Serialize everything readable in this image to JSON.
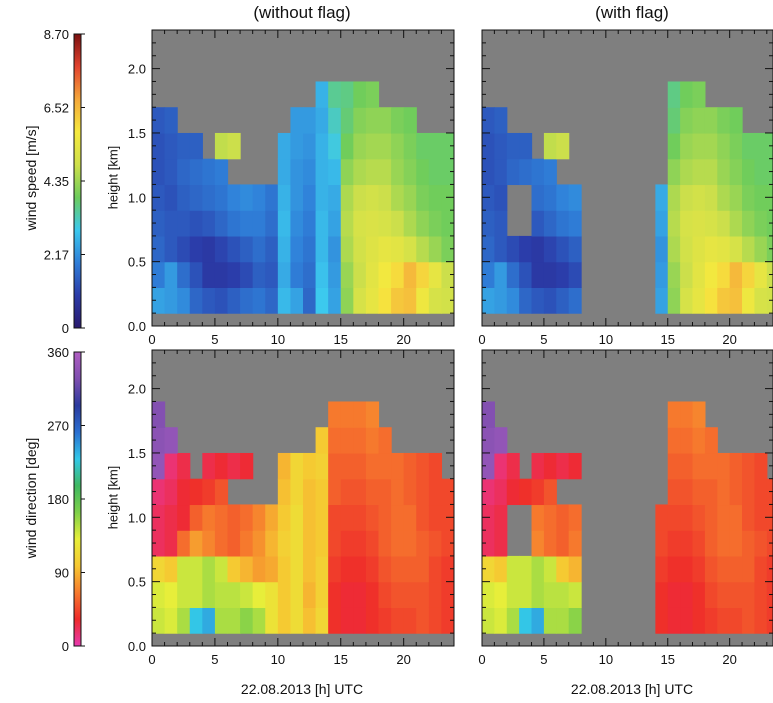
{
  "figure": {
    "column_titles": [
      "(without flag)",
      "(with flag)"
    ],
    "x_label": "22.08.2013  [h] UTC",
    "y_label": "height [km]",
    "background_fill": "#7f7f7f"
  },
  "colorbars": [
    {
      "label": "wind speed [m/s]",
      "ticks": [
        "0",
        "2.17",
        "4.35",
        "6.52",
        "8.70"
      ],
      "range": [
        0,
        8.7
      ],
      "stops": [
        "#2a1a6e",
        "#2b3ba8",
        "#2f7ed8",
        "#3cc9ee",
        "#6dcc5c",
        "#cfe04a",
        "#f6e93e",
        "#f4a73a",
        "#e2432f",
        "#7a1010"
      ]
    },
    {
      "label": "wind direction [deg]",
      "ticks": [
        "0",
        "90",
        "180",
        "270",
        "360"
      ],
      "range": [
        0,
        360
      ],
      "stops": [
        "#e83ab0",
        "#ee2a2a",
        "#f67a2d",
        "#f6c832",
        "#e7ef3a",
        "#7ed04a",
        "#3fb861",
        "#33c8e8",
        "#2b6fd1",
        "#2b3a9e",
        "#7f4fb0",
        "#b05ec2"
      ]
    }
  ],
  "chart_data": [
    {
      "type": "heatmap",
      "title": "(without flag)",
      "variable": "wind speed",
      "unit": "m/s",
      "xlabel": "22.08.2013  [h] UTC",
      "ylabel": "height [km]",
      "xlim": [
        0,
        24
      ],
      "ylim": [
        0,
        2.3
      ],
      "xticks": [
        0,
        5,
        10,
        15,
        20
      ],
      "yticks": [
        0.0,
        0.5,
        1.0,
        1.5,
        2.0
      ],
      "x_hours": [
        0,
        1,
        2,
        3,
        4,
        5,
        6,
        7,
        8,
        9,
        10,
        11,
        12,
        13,
        14,
        15,
        16,
        17,
        18,
        19,
        20,
        21,
        22,
        23
      ],
      "y_km": [
        0.2,
        0.4,
        0.6,
        0.8,
        1.0,
        1.2,
        1.4,
        1.6,
        1.8
      ],
      "values": [
        [
          2.4,
          2.3,
          2.1,
          1.6,
          1.4,
          1.3,
          1.5,
          1.7,
          1.8,
          1.6,
          2.7,
          2.4,
          1.6,
          2.9,
          2.4,
          4.2,
          5.0,
          5.4,
          5.9,
          6.3,
          6.4,
          5.6,
          5.0,
          4.9
        ],
        [
          1.9,
          2.3,
          1.7,
          1.3,
          0.9,
          0.9,
          1.0,
          1.2,
          1.5,
          1.4,
          2.5,
          1.9,
          1.7,
          2.8,
          2.3,
          4.3,
          4.8,
          5.3,
          5.7,
          6.0,
          6.5,
          6.1,
          5.4,
          4.8
        ],
        [
          1.6,
          1.4,
          1.2,
          1.0,
          0.9,
          1.1,
          1.3,
          1.5,
          1.7,
          1.5,
          2.6,
          2.0,
          1.8,
          2.7,
          2.2,
          4.5,
          4.9,
          5.2,
          5.4,
          5.3,
          5.0,
          4.6,
          4.3,
          4.0
        ],
        [
          1.5,
          1.4,
          1.4,
          1.3,
          1.4,
          1.6,
          1.8,
          1.9,
          1.9,
          1.7,
          2.7,
          2.1,
          1.9,
          2.7,
          2.4,
          4.6,
          5.0,
          5.1,
          5.0,
          4.8,
          4.5,
          4.2,
          4.0,
          3.9
        ],
        [
          1.4,
          1.3,
          1.5,
          1.6,
          1.7,
          1.8,
          2.0,
          2.1,
          2.0,
          1.8,
          2.6,
          2.2,
          2.0,
          2.6,
          2.5,
          4.5,
          4.8,
          4.9,
          4.8,
          4.5,
          4.3,
          4.0,
          3.9,
          3.9
        ],
        [
          1.3,
          1.4,
          1.6,
          1.7,
          1.8,
          1.9,
          null,
          null,
          null,
          null,
          2.5,
          2.2,
          2.1,
          2.6,
          2.7,
          4.2,
          4.5,
          4.6,
          4.6,
          4.3,
          4.1,
          3.9,
          3.8,
          3.8
        ],
        [
          1.3,
          1.4,
          1.5,
          1.5,
          null,
          4.7,
          4.8,
          null,
          null,
          null,
          2.5,
          2.3,
          2.2,
          2.6,
          3.0,
          3.9,
          4.3,
          4.4,
          4.4,
          4.2,
          4.0,
          3.8,
          3.8,
          3.8
        ],
        [
          1.4,
          1.5,
          null,
          null,
          null,
          null,
          null,
          null,
          null,
          null,
          null,
          2.3,
          2.3,
          2.5,
          3.2,
          3.7,
          4.1,
          4.2,
          4.2,
          4.0,
          3.9,
          null,
          null,
          null
        ],
        [
          null,
          null,
          null,
          null,
          null,
          null,
          null,
          null,
          null,
          null,
          null,
          null,
          null,
          2.6,
          3.5,
          3.6,
          3.9,
          4.0,
          null,
          null,
          null,
          null,
          null,
          null
        ]
      ]
    },
    {
      "type": "heatmap",
      "title": "(with flag)",
      "variable": "wind speed",
      "unit": "m/s",
      "xlabel": "22.08.2013  [h] UTC",
      "ylabel": "",
      "xlim": [
        0,
        23.5
      ],
      "ylim": [
        0,
        2.3
      ],
      "xticks": [
        0,
        5,
        10,
        15,
        20
      ],
      "yticks": [
        0.0,
        0.5,
        1.0,
        1.5,
        2.0
      ],
      "x_hours": [
        0,
        1,
        2,
        3,
        4,
        5,
        6,
        7,
        8,
        9,
        10,
        11,
        12,
        13,
        14,
        15,
        16,
        17,
        18,
        19,
        20,
        21,
        22,
        23
      ],
      "y_km": [
        0.2,
        0.4,
        0.6,
        0.8,
        1.0,
        1.2,
        1.4,
        1.6,
        1.8
      ],
      "values": [
        [
          2.4,
          2.3,
          2.1,
          1.6,
          1.4,
          1.3,
          1.5,
          1.7,
          null,
          null,
          null,
          null,
          null,
          null,
          2.4,
          4.2,
          5.0,
          5.4,
          5.9,
          6.3,
          6.4,
          5.6,
          5.0,
          4.9
        ],
        [
          1.9,
          2.3,
          1.7,
          1.3,
          0.9,
          0.9,
          1.0,
          1.2,
          null,
          null,
          null,
          null,
          null,
          null,
          2.3,
          4.3,
          4.8,
          5.3,
          5.7,
          6.0,
          6.5,
          6.1,
          5.4,
          4.8
        ],
        [
          1.6,
          1.4,
          1.2,
          1.0,
          0.9,
          1.1,
          1.3,
          1.5,
          null,
          null,
          null,
          null,
          null,
          null,
          2.2,
          4.5,
          4.9,
          5.2,
          5.4,
          5.3,
          5.0,
          4.6,
          4.3,
          4.0
        ],
        [
          1.5,
          1.4,
          null,
          null,
          1.4,
          1.6,
          1.8,
          1.9,
          null,
          null,
          null,
          null,
          null,
          null,
          2.4,
          4.6,
          5.0,
          5.1,
          5.0,
          4.8,
          4.5,
          4.2,
          4.0,
          3.9
        ],
        [
          1.4,
          1.3,
          null,
          null,
          1.7,
          1.8,
          2.0,
          2.1,
          null,
          null,
          null,
          null,
          null,
          null,
          2.5,
          4.5,
          4.8,
          4.9,
          4.8,
          4.5,
          4.3,
          4.0,
          3.9,
          3.9
        ],
        [
          1.3,
          1.4,
          1.6,
          1.7,
          1.8,
          1.9,
          null,
          null,
          null,
          null,
          null,
          null,
          null,
          null,
          null,
          4.2,
          4.5,
          4.6,
          4.6,
          4.3,
          4.1,
          3.9,
          3.8,
          3.8
        ],
        [
          1.3,
          1.4,
          1.5,
          1.5,
          null,
          4.7,
          4.8,
          null,
          null,
          null,
          null,
          null,
          null,
          null,
          null,
          3.9,
          4.3,
          4.4,
          4.4,
          4.2,
          4.0,
          3.8,
          3.8,
          3.8
        ],
        [
          1.4,
          1.5,
          null,
          null,
          null,
          null,
          null,
          null,
          null,
          null,
          null,
          null,
          null,
          null,
          null,
          3.7,
          4.1,
          4.2,
          4.2,
          4.0,
          3.9,
          null,
          null,
          null
        ],
        [
          null,
          null,
          null,
          null,
          null,
          null,
          null,
          null,
          null,
          null,
          null,
          null,
          null,
          null,
          null,
          3.6,
          3.9,
          4.0,
          null,
          null,
          null,
          null,
          null,
          null
        ]
      ]
    },
    {
      "type": "heatmap",
      "title": "",
      "variable": "wind direction",
      "unit": "deg",
      "xlabel": "22.08.2013  [h] UTC",
      "ylabel": "height [km]",
      "xlim": [
        0,
        24
      ],
      "ylim": [
        0,
        2.3
      ],
      "xticks": [
        0,
        5,
        10,
        15,
        20
      ],
      "yticks": [
        0.0,
        0.5,
        1.0,
        1.5,
        2.0
      ],
      "x_hours": [
        0,
        1,
        2,
        3,
        4,
        5,
        6,
        7,
        8,
        9,
        10,
        11,
        12,
        13,
        14,
        15,
        16,
        17,
        18,
        19,
        20,
        21,
        22,
        23
      ],
      "y_km": [
        0.2,
        0.4,
        0.6,
        0.8,
        1.0,
        1.2,
        1.4,
        1.6,
        1.8
      ],
      "values": [
        [
          140,
          135,
          150,
          230,
          240,
          150,
          150,
          160,
          150,
          120,
          100,
          115,
          95,
          110,
          35,
          30,
          30,
          35,
          40,
          45,
          45,
          50,
          45,
          40
        ],
        [
          135,
          130,
          140,
          140,
          150,
          145,
          145,
          140,
          130,
          120,
          100,
          115,
          90,
          105,
          35,
          30,
          30,
          35,
          45,
          50,
          50,
          50,
          45,
          40
        ],
        [
          110,
          100,
          140,
          140,
          150,
          140,
          100,
          90,
          80,
          85,
          100,
          115,
          95,
          105,
          40,
          35,
          35,
          40,
          50,
          55,
          55,
          55,
          45,
          40
        ],
        [
          20,
          25,
          60,
          80,
          70,
          60,
          55,
          65,
          75,
          90,
          105,
          115,
          95,
          100,
          45,
          40,
          40,
          45,
          55,
          60,
          60,
          55,
          50,
          45
        ],
        [
          20,
          25,
          30,
          55,
          65,
          60,
          55,
          60,
          70,
          85,
          100,
          115,
          95,
          100,
          45,
          45,
          45,
          50,
          55,
          60,
          60,
          50,
          45,
          45
        ],
        [
          15,
          20,
          30,
          35,
          40,
          50,
          null,
          null,
          null,
          null,
          95,
          110,
          95,
          100,
          55,
          50,
          50,
          55,
          55,
          60,
          55,
          50,
          45,
          45
        ],
        [
          340,
          15,
          25,
          null,
          25,
          30,
          25,
          30,
          null,
          null,
          90,
          110,
          100,
          105,
          55,
          55,
          55,
          60,
          60,
          60,
          55,
          50,
          45,
          null
        ],
        [
          335,
          340,
          null,
          null,
          null,
          null,
          null,
          null,
          null,
          null,
          null,
          null,
          null,
          100,
          60,
          60,
          60,
          65,
          60,
          null,
          null,
          null,
          null,
          null
        ],
        [
          330,
          null,
          null,
          null,
          null,
          null,
          null,
          null,
          null,
          null,
          null,
          null,
          null,
          null,
          65,
          65,
          65,
          70,
          null,
          null,
          null,
          null,
          null,
          null
        ]
      ]
    },
    {
      "type": "heatmap",
      "title": "",
      "variable": "wind direction",
      "unit": "deg",
      "xlabel": "22.08.2013  [h] UTC",
      "ylabel": "",
      "xlim": [
        0,
        23.5
      ],
      "ylim": [
        0,
        2.3
      ],
      "xticks": [
        0,
        5,
        10,
        15,
        20
      ],
      "yticks": [
        0.0,
        0.5,
        1.0,
        1.5,
        2.0
      ],
      "x_hours": [
        0,
        1,
        2,
        3,
        4,
        5,
        6,
        7,
        8,
        9,
        10,
        11,
        12,
        13,
        14,
        15,
        16,
        17,
        18,
        19,
        20,
        21,
        22,
        23
      ],
      "y_km": [
        0.2,
        0.4,
        0.6,
        0.8,
        1.0,
        1.2,
        1.4,
        1.6,
        1.8
      ],
      "values": [
        [
          140,
          135,
          150,
          230,
          240,
          150,
          150,
          160,
          null,
          null,
          null,
          null,
          null,
          null,
          35,
          30,
          30,
          35,
          40,
          45,
          45,
          50,
          45,
          40
        ],
        [
          135,
          130,
          140,
          140,
          150,
          145,
          145,
          140,
          null,
          null,
          null,
          null,
          null,
          null,
          35,
          30,
          30,
          35,
          45,
          50,
          50,
          50,
          45,
          40
        ],
        [
          110,
          100,
          140,
          140,
          150,
          140,
          100,
          90,
          null,
          null,
          null,
          null,
          null,
          null,
          40,
          35,
          35,
          40,
          50,
          55,
          55,
          55,
          45,
          40
        ],
        [
          20,
          25,
          null,
          null,
          70,
          60,
          55,
          65,
          null,
          null,
          null,
          null,
          null,
          null,
          45,
          40,
          40,
          45,
          55,
          60,
          60,
          55,
          50,
          45
        ],
        [
          20,
          25,
          null,
          null,
          65,
          60,
          55,
          60,
          null,
          null,
          null,
          null,
          null,
          null,
          45,
          45,
          45,
          50,
          55,
          60,
          60,
          50,
          45,
          45
        ],
        [
          15,
          20,
          30,
          35,
          40,
          50,
          null,
          null,
          null,
          null,
          null,
          null,
          null,
          null,
          null,
          50,
          50,
          55,
          55,
          60,
          55,
          50,
          45,
          45
        ],
        [
          340,
          15,
          25,
          null,
          25,
          30,
          25,
          30,
          null,
          null,
          null,
          null,
          null,
          null,
          null,
          55,
          55,
          60,
          60,
          60,
          55,
          50,
          45,
          null
        ],
        [
          335,
          340,
          null,
          null,
          null,
          null,
          null,
          null,
          null,
          null,
          null,
          null,
          null,
          null,
          null,
          60,
          60,
          65,
          60,
          null,
          null,
          null,
          null,
          null
        ],
        [
          330,
          null,
          null,
          null,
          null,
          null,
          null,
          null,
          null,
          null,
          null,
          null,
          null,
          null,
          null,
          65,
          65,
          70,
          null,
          null,
          null,
          null,
          null,
          null
        ]
      ]
    }
  ]
}
